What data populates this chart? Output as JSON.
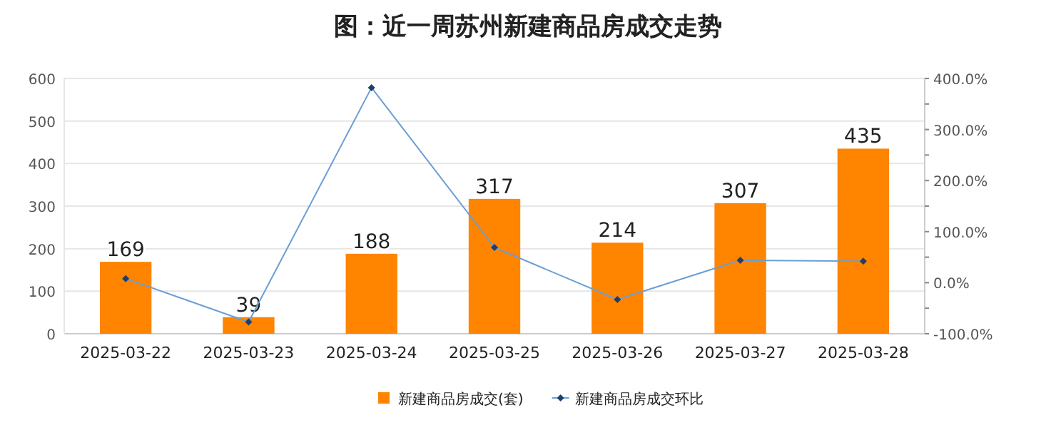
{
  "chart_data": {
    "type": "bar",
    "title": "图：近一周苏州新建商品房成交走势",
    "categories": [
      "2025-03-22",
      "2025-03-23",
      "2025-03-24",
      "2025-03-25",
      "2025-03-26",
      "2025-03-27",
      "2025-03-28"
    ],
    "series": [
      {
        "name": "新建商品房成交(套)",
        "color": "#ff8400",
        "values": [
          169,
          39,
          188,
          317,
          214,
          307,
          435
        ],
        "value_labels": [
          "169",
          "39",
          "188",
          "317",
          "214",
          "307",
          "435"
        ]
      },
      {
        "name": "新建商品房成交环比",
        "type": "line",
        "axis": "y2",
        "color": "#6a9fd4",
        "marker": "diamond",
        "values": [
          8,
          -77,
          382,
          69,
          -33,
          44,
          42
        ]
      }
    ],
    "ylim": [
      0,
      600
    ],
    "yticks": [
      0,
      100,
      200,
      300,
      400,
      500,
      600
    ],
    "y2lim": [
      -100,
      400
    ],
    "y2ticks": [
      {
        "value": -100,
        "label": "-100.0%"
      },
      {
        "value": -50,
        "label": null
      },
      {
        "value": 0,
        "label": "0.0%"
      },
      {
        "value": 50,
        "label": null
      },
      {
        "value": 100,
        "label": "100.0%"
      },
      {
        "value": 150,
        "label": null
      },
      {
        "value": 200,
        "label": "200.0%"
      },
      {
        "value": 250,
        "label": null
      },
      {
        "value": 300,
        "label": "300.0%"
      },
      {
        "value": 350,
        "label": null
      },
      {
        "value": 400,
        "label": "400.0%"
      }
    ],
    "grid": "y",
    "legend": "bottom"
  }
}
